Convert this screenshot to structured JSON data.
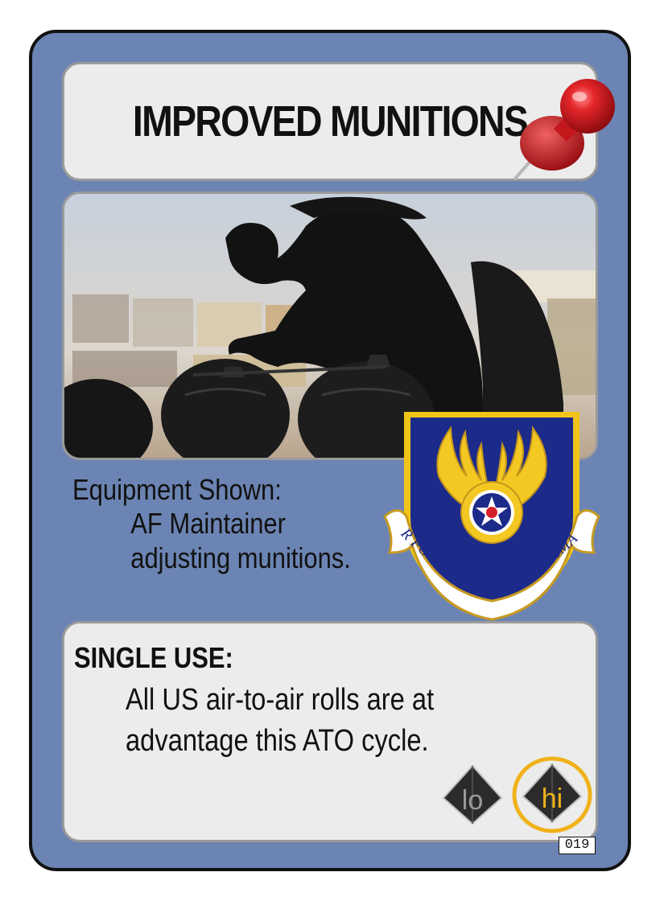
{
  "card": {
    "title": "IMPROVED MUNITIONS",
    "equipment_heading": "Equipment Shown:",
    "equipment_line1": "AF Maintainer",
    "equipment_line2": "adjusting munitions.",
    "ability_heading": "SINGLE USE:",
    "ability_line1": "All US air-to-air rolls are at",
    "ability_line2": "advantage this ATO cycle.",
    "number": "019"
  },
  "dice": {
    "lo_label": "lo",
    "hi_label": "hi",
    "hi_highlight_color": "#f0b21a"
  },
  "emblem": {
    "text": "AIR FORCE MATERIEL COMMAND"
  },
  "icons": [
    "pushpin-icon",
    "command-emblem",
    "lo-die-icon",
    "hi-die-icon"
  ]
}
